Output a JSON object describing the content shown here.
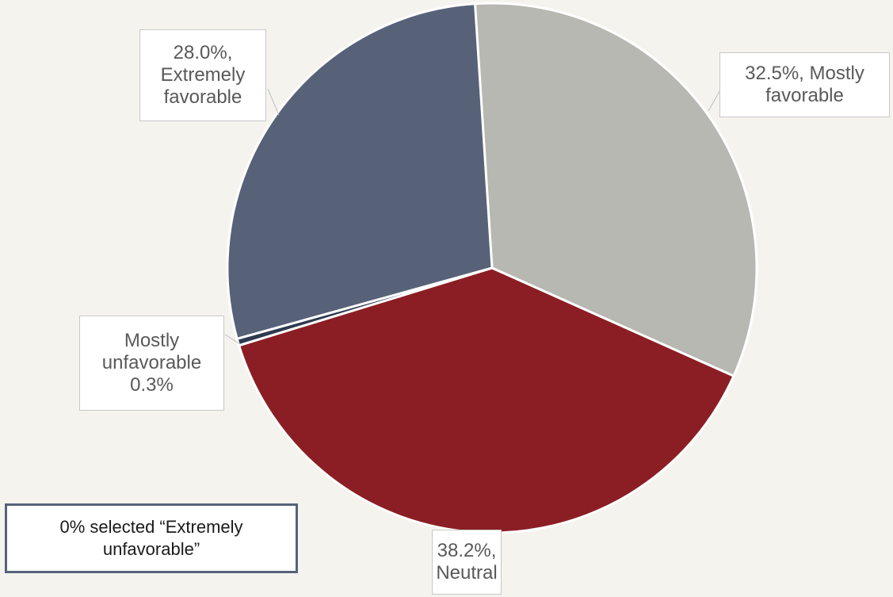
{
  "chart_data": {
    "type": "pie",
    "slices": [
      {
        "name": "Mostly favorable",
        "value": 32.5,
        "color": "#b8b8b2"
      },
      {
        "name": "Neutral",
        "value": 38.2,
        "color": "#8b1e24"
      },
      {
        "name": "Mostly unfavorable",
        "value": 0.3,
        "color": "#2e3a4f"
      },
      {
        "name": "Extremely favorable",
        "value": 28.0,
        "color": "#576279"
      }
    ]
  },
  "labels": {
    "mostly_favorable": {
      "line1": "32.5%, Mostly",
      "line2": "favorable"
    },
    "neutral": {
      "line1": "38.2%,",
      "line2": "Neutral"
    },
    "mostly_unfavorable": {
      "line1": "Mostly",
      "line2": "unfavorable",
      "line3": "0.3%"
    },
    "extremely_favorable": {
      "line1": "28.0%,",
      "line2": "Extremely",
      "line3": "favorable"
    }
  },
  "note": {
    "line1": "0% selected “Extremely",
    "line2": "unfavorable”"
  }
}
